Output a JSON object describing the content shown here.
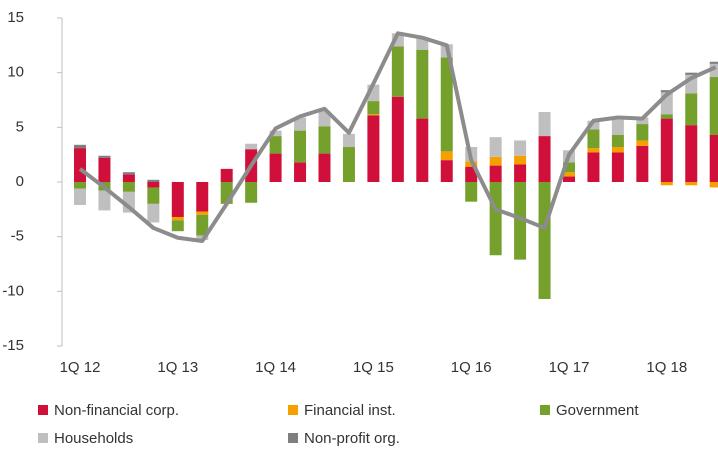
{
  "chart_data": {
    "type": "bar",
    "stacked": true,
    "categories": [
      "1Q 12",
      null,
      null,
      null,
      "1Q 13",
      null,
      null,
      null,
      "1Q 14",
      null,
      null,
      null,
      "1Q 15",
      null,
      null,
      null,
      "1Q 16",
      null,
      null,
      null,
      "1Q 17",
      null,
      null,
      null,
      "1Q 18",
      null,
      null
    ],
    "series": [
      {
        "name": "Non-financial corp.",
        "color": "#d0103a",
        "values": [
          3.1,
          2.2,
          0.7,
          -0.5,
          -3.2,
          -2.7,
          1.2,
          3.0,
          2.6,
          1.8,
          2.6,
          0,
          6.1,
          7.8,
          5.8,
          2.0,
          1.4,
          1.5,
          1.6,
          4.2,
          0.5,
          2.7,
          2.7,
          3.3,
          5.8,
          5.2,
          4.3
        ]
      },
      {
        "name": "Financial inst.",
        "color": "#f5a000",
        "values": [
          0,
          0,
          0,
          0,
          -0.3,
          -0.3,
          0,
          0,
          0,
          0,
          0,
          0,
          0.1,
          0,
          0,
          0.8,
          0.5,
          0.8,
          0.8,
          0,
          0.4,
          0.4,
          0.5,
          0.5,
          -0.3,
          -0.3,
          -0.5
        ]
      },
      {
        "name": "Government",
        "color": "#76a02c",
        "values": [
          -0.6,
          -0.8,
          -0.9,
          -1.5,
          -1.0,
          -1.9,
          -2.0,
          -1.9,
          1.6,
          2.9,
          2.5,
          3.2,
          1.2,
          4.6,
          6.3,
          8.6,
          -1.8,
          -6.7,
          -7.1,
          -10.7,
          0.9,
          1.7,
          1.1,
          1.5,
          0.4,
          2.9,
          5.3
        ]
      },
      {
        "name": "Households",
        "color": "#bfbfbf",
        "values": [
          -1.5,
          -1.8,
          -1.9,
          -1.7,
          0,
          -0.4,
          0,
          0.5,
          0.5,
          1.2,
          1.4,
          1.2,
          1.5,
          1.2,
          1.1,
          1.2,
          1.3,
          1.8,
          1.4,
          2.2,
          1.1,
          0.8,
          1.4,
          0.6,
          2.0,
          1.7,
          1.2
        ]
      },
      {
        "name": "Non-profit org.",
        "color": "#7f7f7f",
        "values": [
          0.3,
          0.2,
          0.2,
          0.2,
          0,
          0,
          0,
          0,
          0,
          0,
          0,
          0,
          0,
          0,
          0,
          0,
          0,
          0,
          0,
          0,
          0,
          0,
          0,
          0,
          0.2,
          0.2,
          0.2
        ]
      }
    ],
    "line": {
      "color": "#8c8c8c",
      "values": [
        1.2,
        -0.5,
        -2.3,
        -4.2,
        -5.1,
        -5.4,
        -2.0,
        1.5,
        4.9,
        6.0,
        6.7,
        4.5,
        9.0,
        13.6,
        13.2,
        12.5,
        2.0,
        -2.5,
        -3.3,
        -4.2,
        2.5,
        5.6,
        5.9,
        5.8,
        8.0,
        9.5,
        10.5
      ]
    },
    "ylim": [
      -15,
      15
    ],
    "yticks": [
      15,
      10,
      5,
      0,
      -5,
      -10,
      -15
    ],
    "legend": "bottom"
  }
}
